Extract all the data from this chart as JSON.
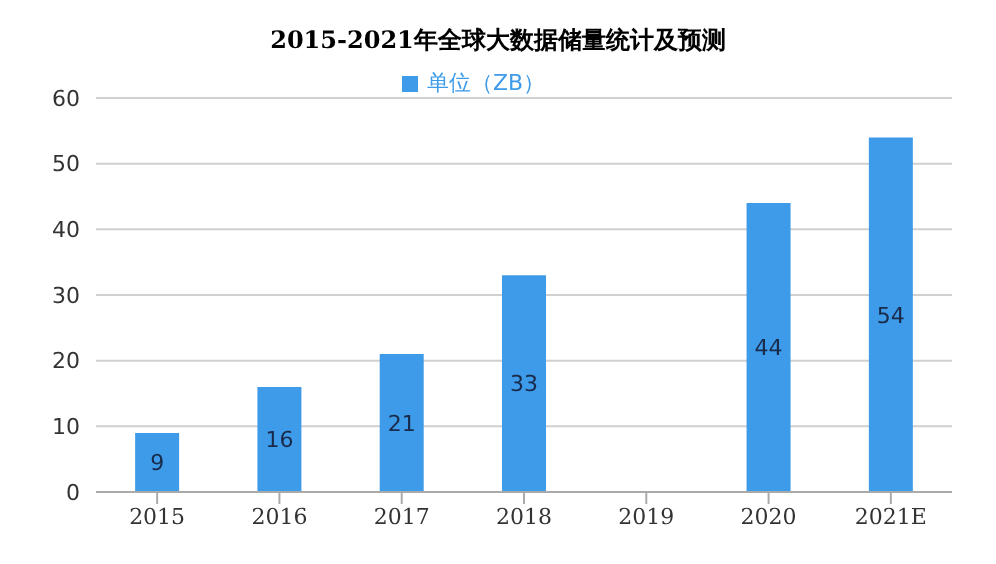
{
  "chart_data": {
    "type": "bar",
    "title": "2015-2021年全球大数据储量统计及预测",
    "categories": [
      "2015",
      "2016",
      "2017",
      "2018",
      "2019",
      "2020",
      "2021E"
    ],
    "series": [
      {
        "name": "单位（ZB）",
        "color": "#3d9be9",
        "values": [
          9,
          16,
          21,
          33,
          null,
          44,
          54
        ]
      }
    ],
    "value_labels": [
      "9",
      "16",
      "21",
      "33",
      null,
      "44",
      "54"
    ],
    "ylim": [
      0,
      60
    ],
    "yticks": [
      0,
      10,
      20,
      30,
      40,
      50,
      60
    ],
    "grid": "y",
    "legend": "top"
  }
}
